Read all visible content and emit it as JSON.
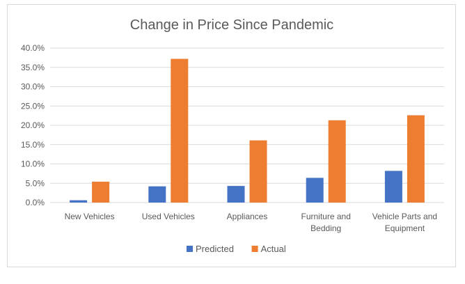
{
  "chart_data": {
    "type": "bar",
    "title": "Change in Price Since Pandemic",
    "categories": [
      [
        "New Vehicles"
      ],
      [
        "Used Vehicles"
      ],
      [
        "Appliances"
      ],
      [
        "Furniture and",
        "Bedding"
      ],
      [
        "Vehicle Parts and",
        "Equipment"
      ]
    ],
    "series": [
      {
        "name": "Predicted",
        "color": "#4472C4",
        "values": [
          0.6,
          4.2,
          4.3,
          6.4,
          8.2
        ]
      },
      {
        "name": "Actual",
        "color": "#ED7D31",
        "values": [
          5.4,
          37.2,
          16.1,
          21.3,
          22.6
        ]
      }
    ],
    "ylim": [
      0,
      40
    ],
    "yticks": [
      "0.0%",
      "5.0%",
      "10.0%",
      "15.0%",
      "20.0%",
      "25.0%",
      "30.0%",
      "35.0%",
      "40.0%"
    ],
    "grid": true,
    "legend_position": "bottom",
    "gridline_color": "#d9d9d9"
  }
}
